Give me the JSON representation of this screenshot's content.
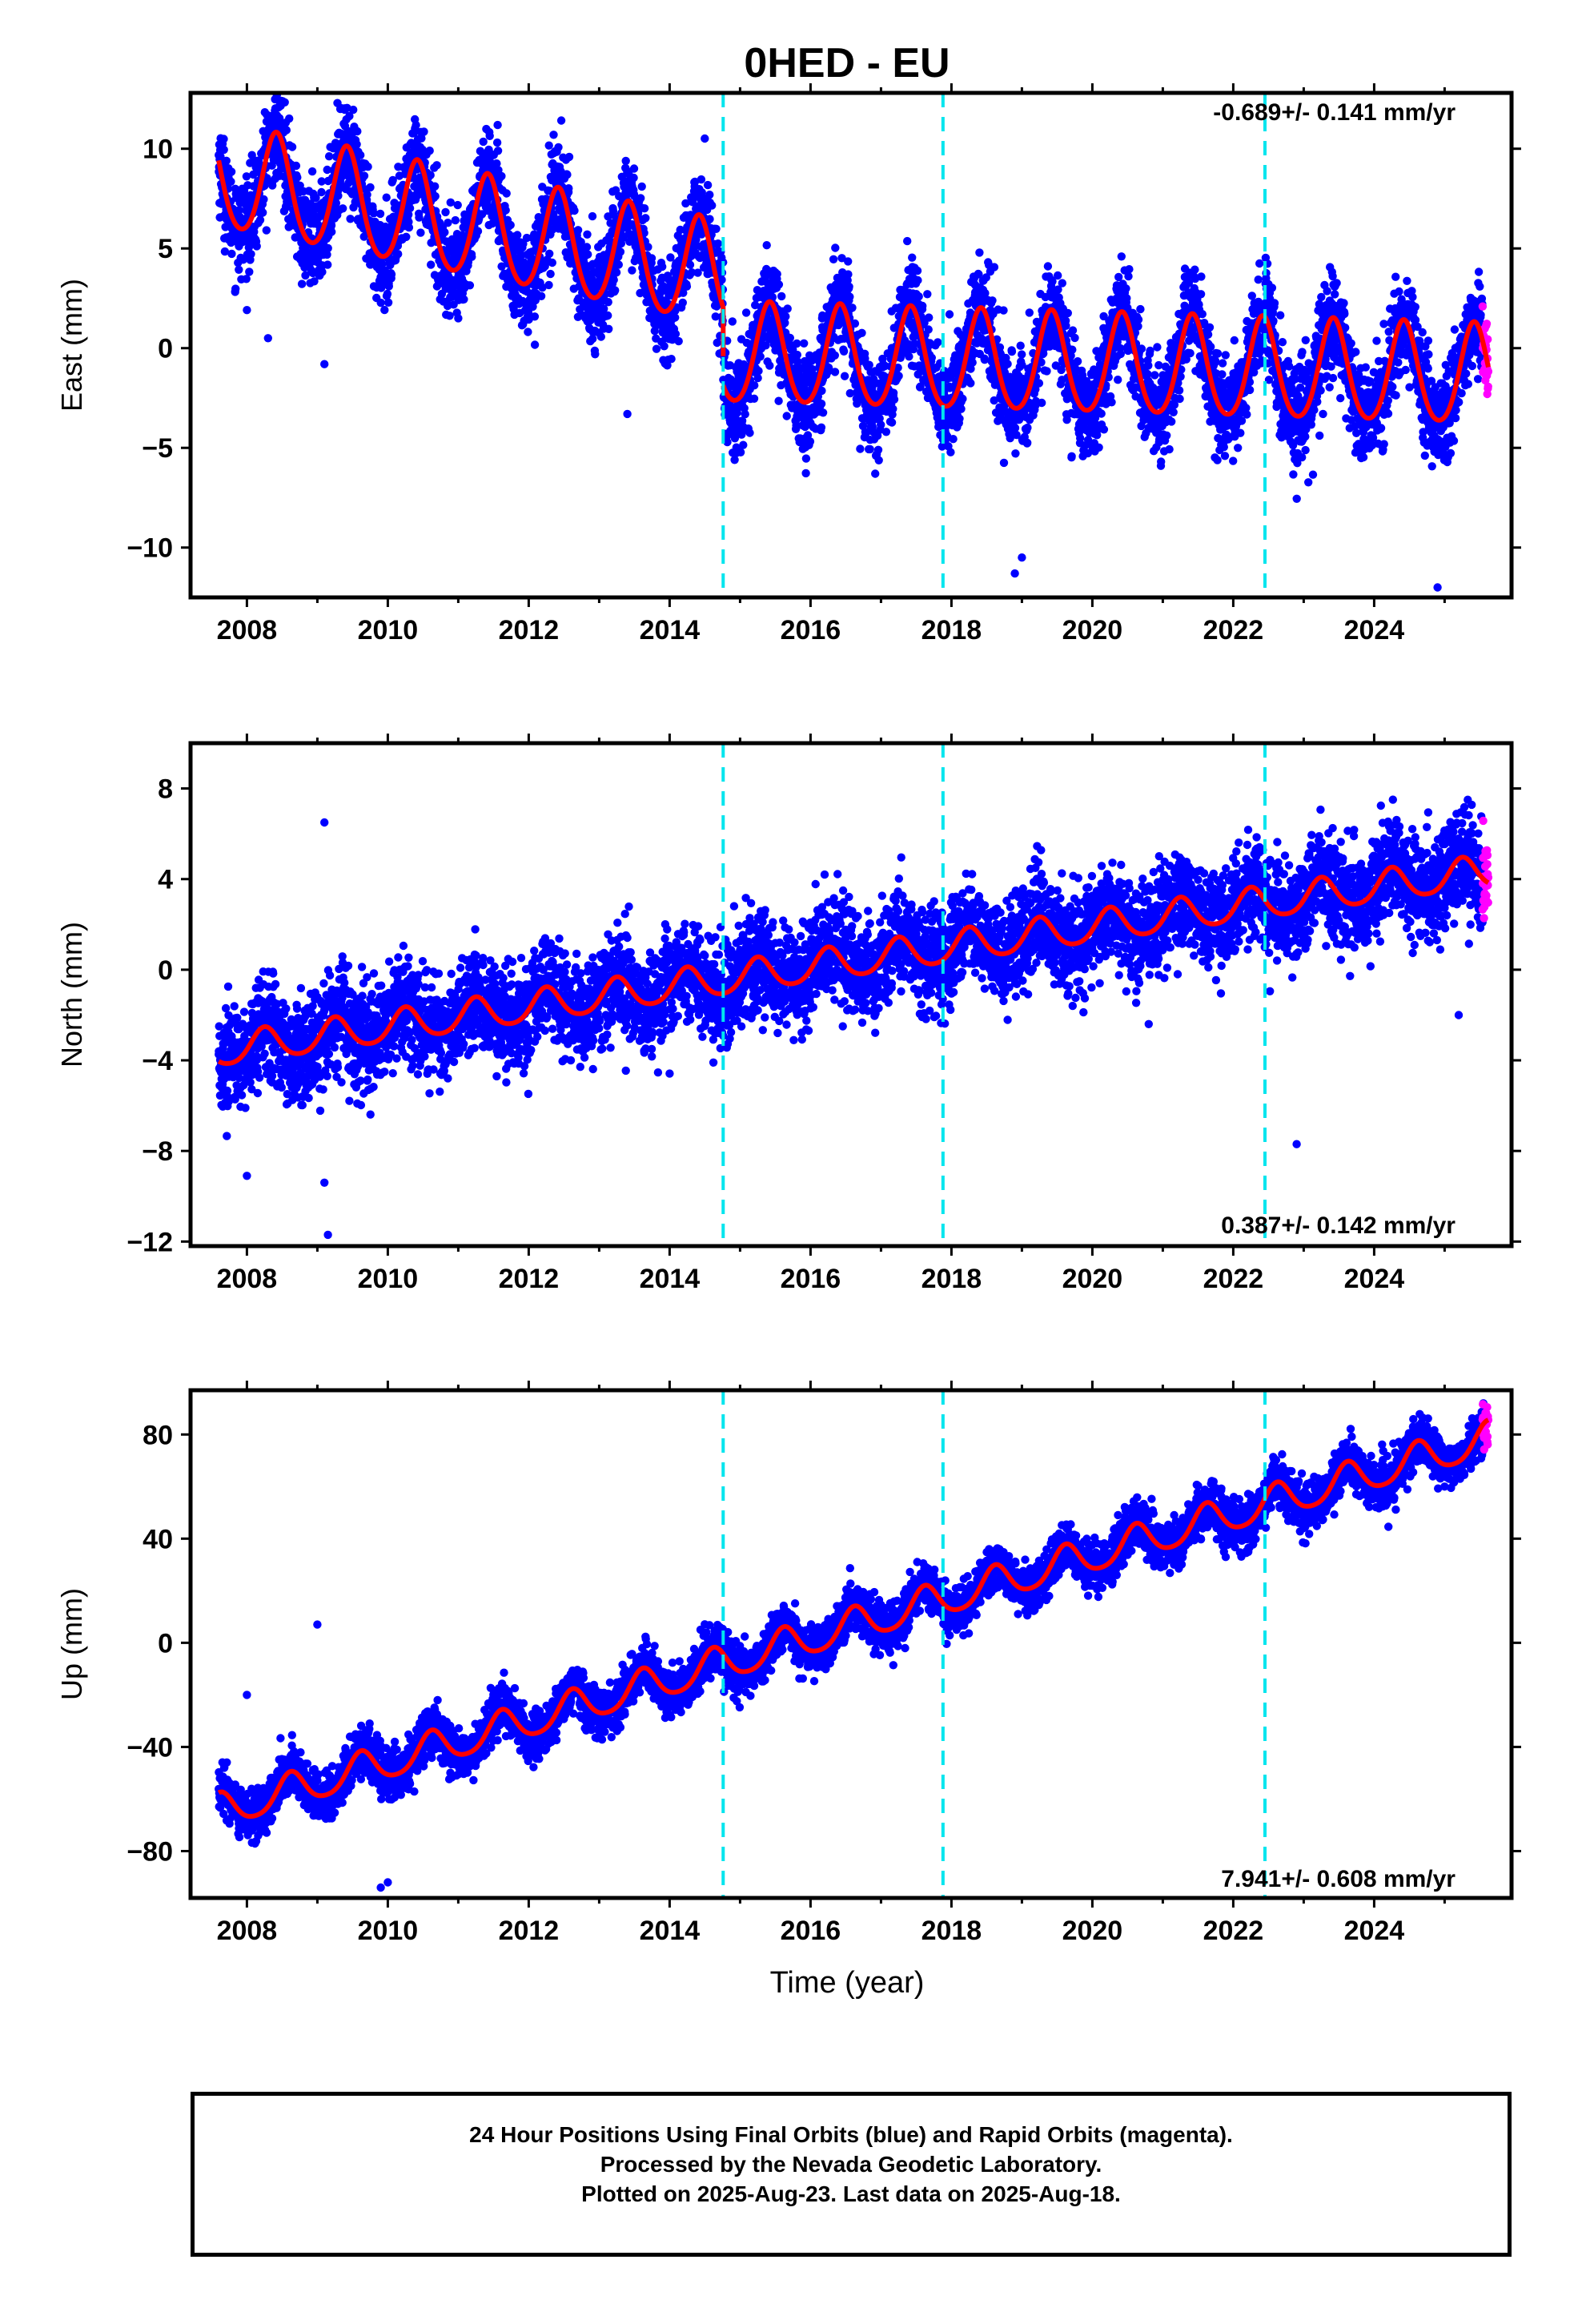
{
  "title": "0HED - EU",
  "xlabel": "Time (year)",
  "caption": [
    "24 Hour Positions Using Final Orbits (blue) and Rapid Orbits (magenta).",
    "Processed by the Nevada Geodetic Laboratory.",
    "Plotted on 2025-Aug-23. Last data on 2025-Aug-18."
  ],
  "colors": {
    "final": "#0000ff",
    "rapid": "#ff00ff",
    "model": "#ff0000",
    "event": "#00e5ee",
    "axis": "#000000"
  },
  "chart_data": [
    {
      "type": "scatter",
      "ylabel": "East (mm)",
      "rate_label": "-0.689+/- 0.141 mm/yr",
      "xlim": [
        2007.2,
        2025.95
      ],
      "ylim": [
        -12.5,
        12.8
      ],
      "yticks": [
        10,
        5,
        0,
        -5,
        -10
      ],
      "yticklabels": [
        "10",
        "5",
        "0",
        "−5",
        "−10"
      ],
      "xticks": [
        2008,
        2010,
        2012,
        2014,
        2016,
        2018,
        2020,
        2022,
        2024
      ],
      "xticklabels": [
        "2008",
        "2010",
        "2012",
        "2014",
        "2016",
        "2018",
        "2020",
        "2022",
        "2024"
      ],
      "event_lines": [
        2014.76,
        2017.88,
        2022.45
      ],
      "data_range": [
        2007.6,
        2025.62
      ],
      "model": {
        "segments": [
          {
            "x0": 2007.6,
            "x1": 2014.76,
            "intercept": 8.5,
            "slope": -0.69,
            "annual_amp": 2.6,
            "phase_year": 2008.42,
            "semiannual_amp": 0.3
          },
          {
            "x0": 2014.76,
            "x1": 2025.62,
            "intercept": -0.4,
            "slope": -0.1,
            "annual_amp": 2.5,
            "phase_year": 2008.42,
            "semiannual_amp": 0.3
          }
        ],
        "noise_sd": 1.2
      },
      "outliers": [
        [
          2008.3,
          0.5
        ],
        [
          2009.1,
          -0.8
        ],
        [
          2013.4,
          -3.3
        ],
        [
          2018.9,
          -11.3
        ],
        [
          2024.9,
          -12.0
        ],
        [
          2019.0,
          -10.5
        ],
        [
          2011.0,
          1.5
        ]
      ]
    },
    {
      "type": "scatter",
      "ylabel": "North (mm)",
      "rate_label": "0.387+/- 0.142 mm/yr",
      "xlim": [
        2007.2,
        2025.95
      ],
      "ylim": [
        -12.2,
        10.0
      ],
      "yticks": [
        8,
        4,
        0,
        -4,
        -8,
        -12
      ],
      "yticklabels": [
        "8",
        "4",
        "0",
        "−4",
        "−8",
        "−12"
      ],
      "xticks": [
        2008,
        2010,
        2012,
        2014,
        2016,
        2018,
        2020,
        2022,
        2024
      ],
      "xticklabels": [
        "2008",
        "2010",
        "2012",
        "2014",
        "2016",
        "2018",
        "2020",
        "2022",
        "2024"
      ],
      "event_lines": [
        2014.76,
        2017.88,
        2022.45
      ],
      "data_range": [
        2007.6,
        2025.62
      ],
      "model": {
        "segments": [
          {
            "x0": 2007.6,
            "x1": 2025.62,
            "intercept": -3.6,
            "slope": 0.44,
            "annual_amp": 0.7,
            "phase_year": 2008.25,
            "semiannual_amp": 0.1
          }
        ],
        "noise_sd": 1.1
      },
      "outliers": [
        [
          2008.0,
          -9.1
        ],
        [
          2009.1,
          -9.4
        ],
        [
          2009.15,
          -11.7
        ],
        [
          2009.1,
          6.5
        ],
        [
          2022.9,
          -7.7
        ],
        [
          2016.2,
          4.2
        ],
        [
          2025.2,
          -2.0
        ]
      ]
    },
    {
      "type": "scatter",
      "ylabel": "Up (mm)",
      "rate_label": "7.941+/- 0.608 mm/yr",
      "xlim": [
        2007.2,
        2025.95
      ],
      "ylim": [
        -98,
        97
      ],
      "yticks": [
        80,
        40,
        0,
        -40,
        -80
      ],
      "yticklabels": [
        "80",
        "40",
        "0",
        "−40",
        "−80"
      ],
      "xticks": [
        2008,
        2010,
        2012,
        2014,
        2016,
        2018,
        2020,
        2022,
        2024
      ],
      "xticklabels": [
        "2008",
        "2010",
        "2012",
        "2014",
        "2016",
        "2018",
        "2020",
        "2022",
        "2024"
      ],
      "event_lines": [
        2014.76,
        2017.88,
        2022.45
      ],
      "data_range": [
        2007.6,
        2025.62
      ],
      "model": {
        "segments": [
          {
            "x0": 2007.6,
            "x1": 2025.62,
            "intercept": -65,
            "slope": 7.94,
            "annual_amp": 6.5,
            "phase_year": 2008.62,
            "semiannual_amp": 1.0
          }
        ],
        "noise_sd": 4.5
      },
      "outliers": [
        [
          2009.0,
          7
        ],
        [
          2010.0,
          -92
        ],
        [
          2009.9,
          -94
        ],
        [
          2008.0,
          -20
        ],
        [
          2022.5,
          65
        ],
        [
          2025.55,
          92
        ]
      ]
    }
  ]
}
